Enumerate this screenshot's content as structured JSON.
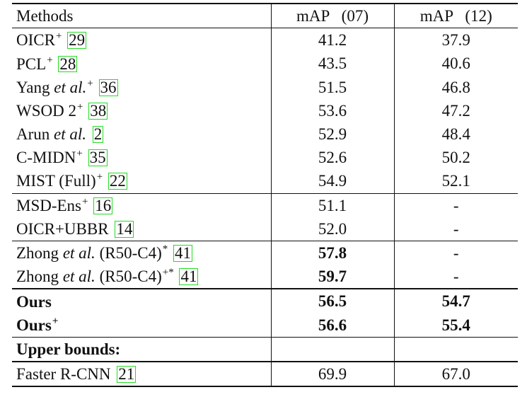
{
  "header": {
    "methods": "Methods",
    "map07": "mAP   (07)",
    "map12": "mAP   (12)"
  },
  "rows": [
    {
      "pre": "OICR",
      "it": "",
      "post": "",
      "sup": "+",
      "ref": "29",
      "v07": "41.2",
      "v12": "37.9",
      "bold07": false,
      "bold12": false,
      "boldname": false
    },
    {
      "pre": "PCL",
      "it": "",
      "post": "",
      "sup": "+",
      "ref": "28",
      "v07": "43.5",
      "v12": "40.6",
      "bold07": false,
      "bold12": false,
      "boldname": false
    },
    {
      "pre": "Yang ",
      "it": "et al.",
      "post": "",
      "sup": "+",
      "ref": "36",
      "v07": "51.5",
      "v12": "46.8",
      "bold07": false,
      "bold12": false,
      "boldname": false
    },
    {
      "pre": "WSOD 2",
      "it": "",
      "post": "",
      "sup": "+",
      "ref": "38",
      "v07": "53.6",
      "v12": "47.2",
      "bold07": false,
      "bold12": false,
      "boldname": false
    },
    {
      "pre": "Arun ",
      "it": "et al.",
      "post": "",
      "sup": "",
      "ref": "2",
      "v07": "52.9",
      "v12": "48.4",
      "bold07": false,
      "bold12": false,
      "boldname": false
    },
    {
      "pre": "C-MIDN",
      "it": "",
      "post": "",
      "sup": "+",
      "ref": "35",
      "v07": "52.6",
      "v12": "50.2",
      "bold07": false,
      "bold12": false,
      "boldname": false
    },
    {
      "pre": "MIST (Full)",
      "it": "",
      "post": "",
      "sup": "+",
      "ref": "22",
      "v07": "54.9",
      "v12": "52.1",
      "bold07": false,
      "bold12": false,
      "boldname": false
    },
    {
      "pre": "MSD-Ens",
      "it": "",
      "post": "",
      "sup": "+",
      "ref": "16",
      "v07": "51.1",
      "v12": "-",
      "bold07": false,
      "bold12": false,
      "boldname": false
    },
    {
      "pre": "OICR+UBBR",
      "it": "",
      "post": "",
      "sup": "",
      "ref": "14",
      "v07": "52.0",
      "v12": "-",
      "bold07": false,
      "bold12": false,
      "boldname": false
    },
    {
      "pre": "Zhong ",
      "it": "et al.",
      "post": " (R50-C4)",
      "sup": "*",
      "ref": "41",
      "v07": "57.8",
      "v12": "-",
      "bold07": true,
      "bold12": false,
      "boldname": false
    },
    {
      "pre": "Zhong ",
      "it": "et al.",
      "post": " (R50-C4)",
      "sup": "+*",
      "ref": "41",
      "v07": "59.7",
      "v12": "-",
      "bold07": true,
      "bold12": false,
      "boldname": false
    },
    {
      "pre": "Ours",
      "it": "",
      "post": "",
      "sup": "",
      "ref": "",
      "v07": "56.5",
      "v12": "54.7",
      "bold07": true,
      "bold12": true,
      "boldname": true
    },
    {
      "pre": "Ours",
      "it": "",
      "post": "",
      "sup": "+",
      "ref": "",
      "v07": "56.6",
      "v12": "55.4",
      "bold07": true,
      "bold12": true,
      "boldname": true
    },
    {
      "pre": "Upper bounds:",
      "it": "",
      "post": "",
      "sup": "",
      "ref": "",
      "v07": "",
      "v12": "",
      "bold07": false,
      "bold12": false,
      "boldname": true
    },
    {
      "pre": "Faster R-CNN",
      "it": "",
      "post": "",
      "sup": "",
      "ref": "21",
      "v07": "69.9",
      "v12": "67.0",
      "bold07": false,
      "bold12": false,
      "boldname": false
    }
  ]
}
